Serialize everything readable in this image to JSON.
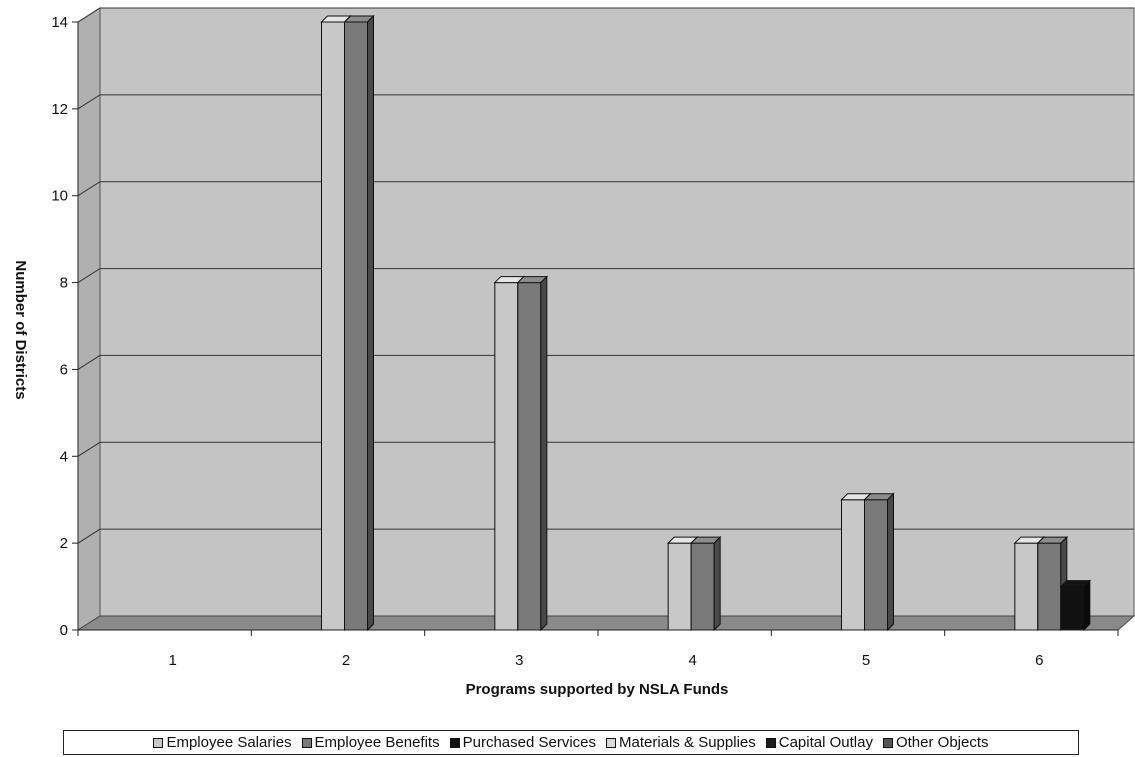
{
  "chart_data": {
    "type": "bar",
    "xlabel": "Programs supported by NSLA Funds",
    "ylabel": "Number of Districts",
    "ylim": [
      0,
      14
    ],
    "yticks": [
      "0",
      "2",
      "4",
      "6",
      "8",
      "10",
      "12",
      "14"
    ],
    "categories": [
      "1",
      "2",
      "3",
      "4",
      "5",
      "6"
    ],
    "grid": true,
    "legend_position": "bottom",
    "series": [
      {
        "name": "Employee Salaries",
        "color": "#c8c8c8",
        "values": [
          0,
          14,
          8,
          2,
          3,
          2
        ]
      },
      {
        "name": "Employee Benefits",
        "color": "#7a7a7a",
        "values": [
          0,
          14,
          8,
          2,
          3,
          2
        ]
      },
      {
        "name": "Purchased Services",
        "color": "#111111",
        "values": [
          0,
          0,
          0,
          0,
          0,
          1
        ]
      },
      {
        "name": "Materials & Supplies",
        "color": "#d8d8d8",
        "values": [
          0,
          0,
          0,
          0,
          0,
          0
        ]
      },
      {
        "name": "Capital Outlay",
        "color": "#1a1a1a",
        "values": [
          0,
          0,
          0,
          0,
          0,
          0
        ]
      },
      {
        "name": "Other Objects",
        "color": "#555555",
        "values": [
          0,
          0,
          0,
          0,
          0,
          0
        ]
      }
    ],
    "colors": {
      "plot_background": "#c4c4c4",
      "floor": "#8a8a8a",
      "gridline": "#333333"
    }
  }
}
